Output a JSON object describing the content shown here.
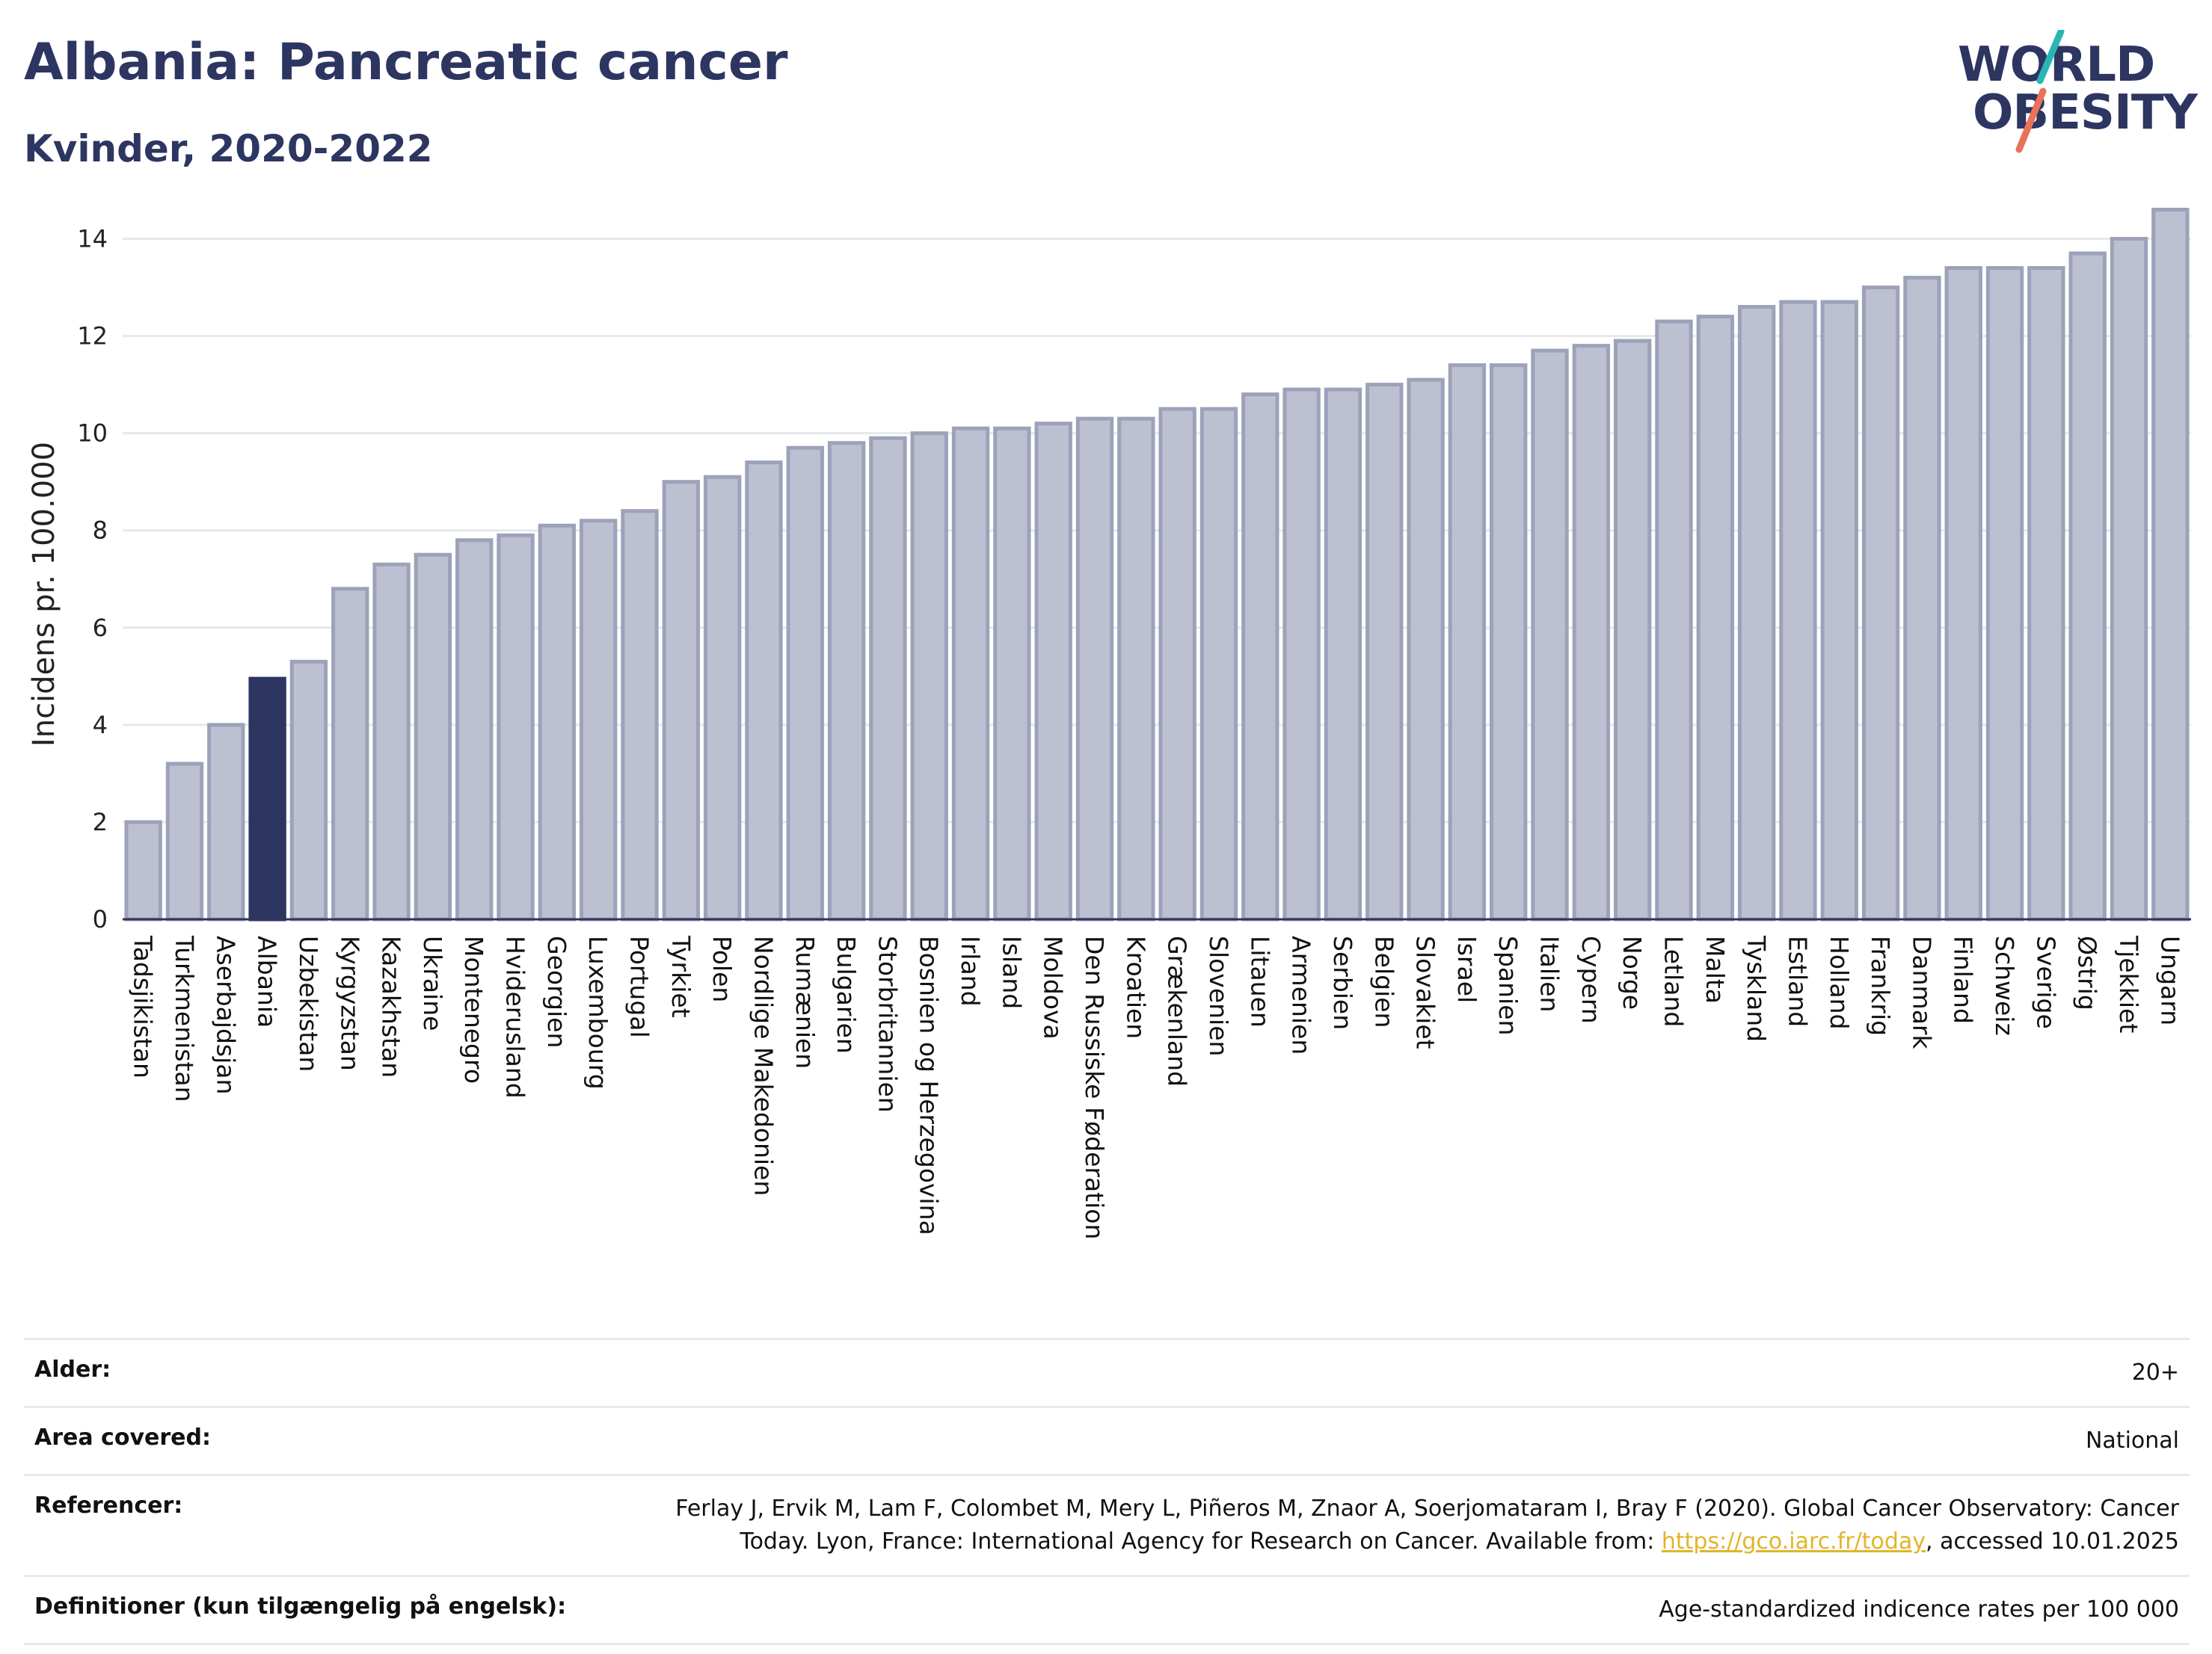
{
  "header": {
    "title": "Albania: Pancreatic cancer",
    "subtitle": "Kvinder, 2020-2022",
    "logo_line1": "WORLD",
    "logo_line2": "OBESITY"
  },
  "colors": {
    "highlight": "#2d3561",
    "bar": "#bcc0d0",
    "bar_stroke": "#9da2ba",
    "grid": "#e6e8ec",
    "logo_teal": "#2ab5b5",
    "logo_coral": "#e8735a",
    "link": "#e0b529"
  },
  "chart_data": {
    "type": "bar",
    "ylabel": "Incidens pr. 100.000",
    "ylim": [
      0,
      15
    ],
    "yticks": [
      0,
      2,
      4,
      6,
      8,
      10,
      12,
      14
    ],
    "grid": true,
    "highlight": "Albania",
    "categories": [
      "Tadsjikistan",
      "Turkmenistan",
      "Aserbajdsjan",
      "Albania",
      "Uzbekistan",
      "Kyrgyzstan",
      "Kazakhstan",
      "Ukraine",
      "Montenegro",
      "Hviderusland",
      "Georgien",
      "Luxembourg",
      "Portugal",
      "Tyrkiet",
      "Polen",
      "Nordlige Makedonien",
      "Rumænien",
      "Bulgarien",
      "Storbritannien",
      "Bosnien og Herzegovina",
      "Irland",
      "Island",
      "Moldova",
      "Den Russiske Føderation",
      "Kroatien",
      "Grækenland",
      "Slovenien",
      "Litauen",
      "Armenien",
      "Serbien",
      "Belgien",
      "Slovakiet",
      "Israel",
      "Spanien",
      "Italien",
      "Cypern",
      "Norge",
      "Letland",
      "Malta",
      "Tyskland",
      "Estland",
      "Holland",
      "Frankrig",
      "Danmark",
      "Finland",
      "Schweiz",
      "Sverige",
      "Østrig",
      "Tjekkiet",
      "Ungarn"
    ],
    "values": [
      2.0,
      3.2,
      4.0,
      4.95,
      5.3,
      6.8,
      7.3,
      7.5,
      7.8,
      7.9,
      8.1,
      8.2,
      8.4,
      9.0,
      9.1,
      9.4,
      9.7,
      9.8,
      9.9,
      10.0,
      10.1,
      10.1,
      10.2,
      10.3,
      10.3,
      10.5,
      10.5,
      10.8,
      10.9,
      10.9,
      11.0,
      11.1,
      11.4,
      11.4,
      11.7,
      11.8,
      11.9,
      12.3,
      12.4,
      12.6,
      12.7,
      12.7,
      13.0,
      13.2,
      13.4,
      13.4,
      13.4,
      13.7,
      14.0,
      14.6
    ]
  },
  "footer": {
    "age_label": "Alder:",
    "age_value": "20+",
    "area_label": "Area covered:",
    "area_value": "National",
    "ref_label": "Referencer:",
    "ref_line1": "Ferlay J, Ervik M, Lam F, Colombet M, Mery L, Piñeros M, Znaor A, Soerjomataram I, Bray F (2020). Global Cancer Observatory: Cancer",
    "ref_line2_pre": "Today. Lyon, France: International Agency for Research on Cancer. Available from: ",
    "ref_link": "https://gco.iarc.fr/today",
    "ref_line2_post": ", accessed 10.01.2025",
    "def_label": "Definitioner (kun tilgængelig på engelsk):",
    "def_value": "Age-standardized indicence rates per 100 000"
  }
}
